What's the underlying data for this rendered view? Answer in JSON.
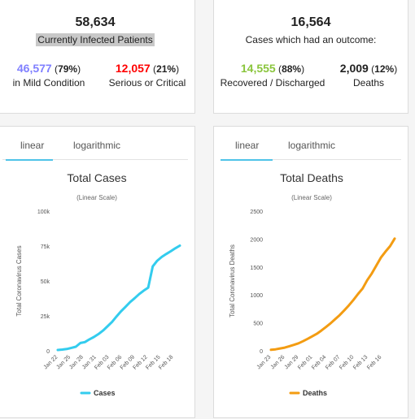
{
  "active": {
    "total": "58,634",
    "label": "Currently Infected Patients",
    "mild": {
      "number": "46,577",
      "pct_open": " (",
      "pct": "79%",
      "pct_close": ")",
      "label": "in Mild Condition",
      "color": "#8080ff"
    },
    "serious": {
      "number": "12,057",
      "pct_open": " (",
      "pct": "21%",
      "pct_close": ")",
      "label": "Serious or Critical",
      "color": "#ff0000"
    }
  },
  "closed": {
    "total": "16,564",
    "label": "Cases which had an outcome:",
    "recovered": {
      "number": "14,555",
      "pct_open": " (",
      "pct": "88%",
      "pct_close": ")",
      "label": "Recovered / Discharged",
      "color": "#8ac53c"
    },
    "deaths": {
      "number": "2,009",
      "pct_open": " (",
      "pct": "12%",
      "pct_close": ")",
      "label": "Deaths",
      "color": "#222222"
    }
  },
  "tabs": {
    "linear": "linear",
    "log": "logarithmic",
    "active_color": "#4fc3e8"
  },
  "chart_data": [
    {
      "type": "line",
      "title": "Total Cases",
      "subtitle": "(Linear Scale)",
      "ylabel": "Total Coronavirus Cases",
      "xlabel": "",
      "ylim": [
        0,
        100000
      ],
      "yticks": [
        0,
        25000,
        50000,
        75000,
        100000
      ],
      "ytick_labels": [
        "0",
        "25k",
        "50k",
        "75k",
        "100k"
      ],
      "x_tick_labels": [
        "Jan 22",
        "Jan 25",
        "Jan 28",
        "Jan 31",
        "Feb 03",
        "Feb 06",
        "Feb 09",
        "Feb 12",
        "Feb 15",
        "Feb 18"
      ],
      "grid": false,
      "legend": "bottom",
      "series": [
        {
          "name": "Cases",
          "color": "#33ccee",
          "values": [
            580,
            850,
            1300,
            2100,
            2900,
            5600,
            6200,
            8200,
            9900,
            12000,
            14500,
            17500,
            20700,
            24600,
            28300,
            31500,
            34900,
            37600,
            40600,
            43100,
            45200,
            60400,
            64500,
            67200,
            69300,
            71300,
            73400,
            75300
          ]
        }
      ]
    },
    {
      "type": "line",
      "title": "Total Deaths",
      "subtitle": "(Linear Scale)",
      "ylabel": "Total Coronavirus Deaths",
      "xlabel": "",
      "ylim": [
        0,
        2500
      ],
      "yticks": [
        0,
        500,
        1000,
        1500,
        2000,
        2500
      ],
      "ytick_labels": [
        "0",
        "500",
        "1000",
        "1500",
        "2000",
        "2500"
      ],
      "x_tick_labels": [
        "Jan 23",
        "Jan 26",
        "Jan 29",
        "Feb 01",
        "Feb 04",
        "Feb 07",
        "Feb 10",
        "Feb 13",
        "Feb 16"
      ],
      "grid": false,
      "legend": "bottom",
      "series": [
        {
          "name": "Deaths",
          "color": "#f39c12",
          "values": [
            18,
            26,
            42,
            56,
            82,
            106,
            133,
            171,
            213,
            259,
            304,
            362,
            426,
            492,
            565,
            638,
            724,
            813,
            910,
            1018,
            1115,
            1261,
            1383,
            1526,
            1669,
            1775,
            1873,
            2009
          ]
        }
      ]
    }
  ]
}
